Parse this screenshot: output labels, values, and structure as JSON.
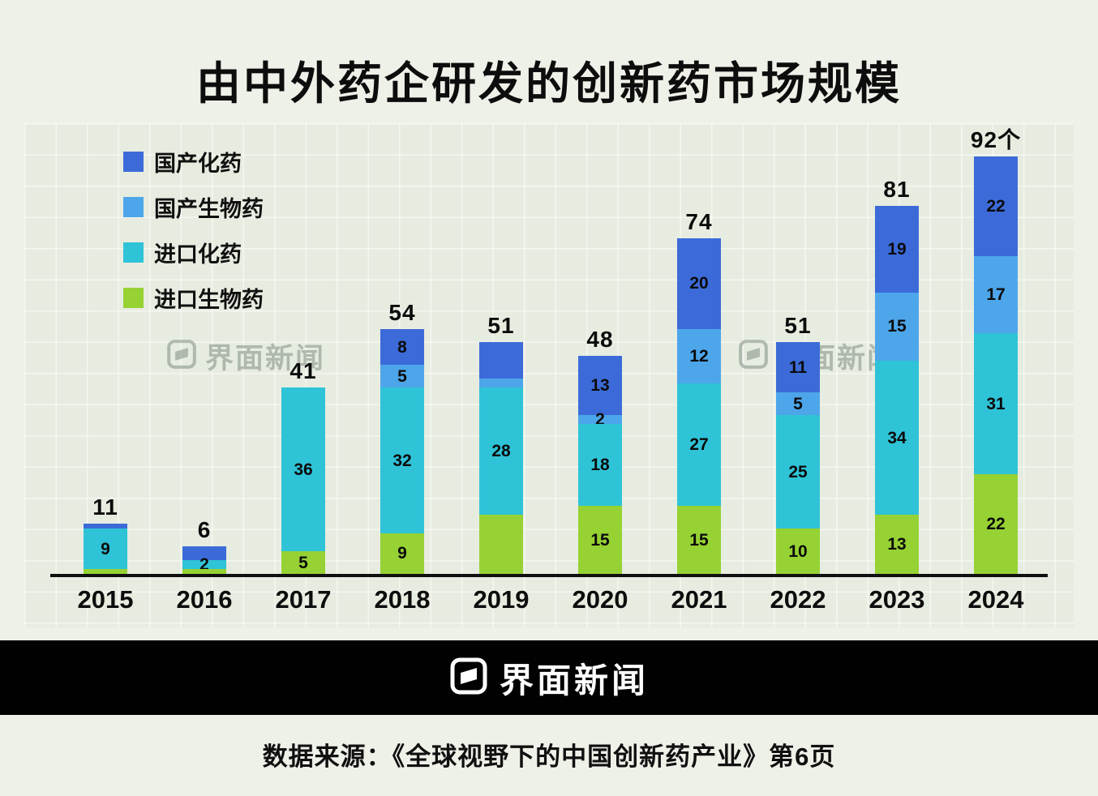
{
  "title": "由中外药企研发的创新药市场规模",
  "watermark": {
    "text": "界面新闻"
  },
  "footer": {
    "brand": "界面新闻",
    "source": "数据来源：《全球视野下的中国创新药产业》第6页"
  },
  "legend": [
    {
      "label": "国产化药",
      "color": "#3c6bd9"
    },
    {
      "label": "国产生物药",
      "color": "#4da6ea"
    },
    {
      "label": "进口化药",
      "color": "#2fc3d7"
    },
    {
      "label": "进口生物药",
      "color": "#96d233"
    }
  ],
  "colors": {
    "background": "#eef1e8",
    "panel": "#e7ece0",
    "axis": "#101010",
    "footer_band": "#010101",
    "watermark_gray": "#76857b"
  },
  "chart_data": {
    "type": "bar",
    "stacked": true,
    "stack_order": "bottom-to-top",
    "title": "由中外药企研发的创新药市场规模",
    "xlabel": "",
    "ylabel": "",
    "ylim": [
      0,
      100
    ],
    "grid": true,
    "legend_position": "top-left",
    "categories": [
      "2015",
      "2016",
      "2017",
      "2018",
      "2019",
      "2020",
      "2021",
      "2022",
      "2023",
      "2024"
    ],
    "series": [
      {
        "name": "进口生物药",
        "key": "imported-biologic",
        "color": "#96d233",
        "values": [
          1,
          1,
          5,
          9,
          13,
          15,
          15,
          10,
          13,
          22
        ],
        "labels": [
          "",
          "",
          "5",
          "9",
          "",
          "15",
          "15",
          "10",
          "13",
          "22"
        ]
      },
      {
        "name": "进口化药",
        "key": "imported-chemical",
        "color": "#2fc3d7",
        "values": [
          9,
          2,
          36,
          32,
          28,
          18,
          27,
          25,
          34,
          31
        ],
        "labels": [
          "9",
          "2",
          "36",
          "32",
          "28",
          "18",
          "27",
          "25",
          "34",
          "31"
        ]
      },
      {
        "name": "国产生物药",
        "key": "domestic-biologic",
        "color": "#4da6ea",
        "values": [
          0,
          0,
          0,
          5,
          2,
          2,
          12,
          5,
          15,
          17
        ],
        "labels": [
          "",
          "",
          "",
          "5",
          "",
          "2",
          "12",
          "5",
          "15",
          "17"
        ]
      },
      {
        "name": "国产化药",
        "key": "domestic-chemical",
        "color": "#3c6bd9",
        "values": [
          1,
          3,
          0,
          8,
          8,
          13,
          20,
          11,
          19,
          22
        ],
        "labels": [
          "",
          "",
          "",
          "8",
          "",
          "13",
          "20",
          "11",
          "19",
          "22"
        ]
      }
    ],
    "totals": [
      11,
      6,
      41,
      54,
      51,
      48,
      74,
      51,
      81,
      92
    ],
    "total_labels": [
      "11",
      "6",
      "41",
      "54",
      "51",
      "48",
      "74",
      "51",
      "81",
      "92个"
    ]
  }
}
